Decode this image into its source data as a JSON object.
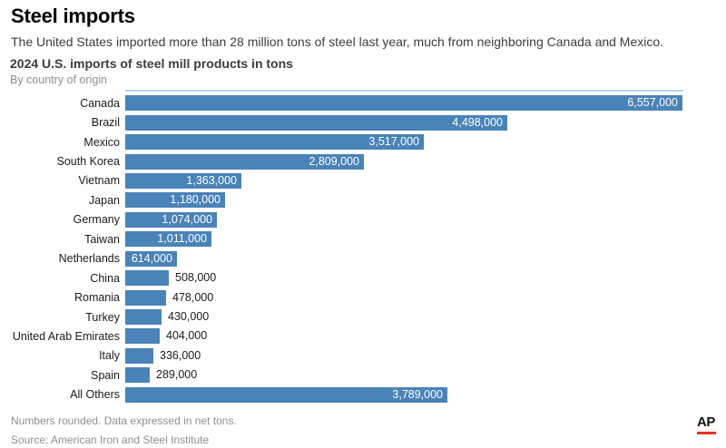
{
  "header": {
    "title": "Steel imports",
    "description": "The United States imported more than 28 million tons of steel last year, much from neighboring Canada and Mexico."
  },
  "chart": {
    "title": "2024 U.S. imports of steel mill products in tons",
    "subtitle": "By country of origin",
    "bar_color": "#4a83b8",
    "top_rule_color": "#b9d5ea",
    "inside_label_color": "#ffffff",
    "outside_label_color": "#1a1a1a"
  },
  "chart_data": {
    "type": "bar",
    "orientation": "horizontal",
    "title": "2024 U.S. imports of steel mill products in tons",
    "subtitle": "By country of origin",
    "xlabel": "",
    "ylabel": "",
    "xlim": [
      0,
      6557000
    ],
    "grid": false,
    "legend": false,
    "categories": [
      "Canada",
      "Brazil",
      "Mexico",
      "South Korea",
      "Vietnam",
      "Japan",
      "Germany",
      "Taiwan",
      "Netherlands",
      "China",
      "Romania",
      "Turkey",
      "United Arab Emirates",
      "Italy",
      "Spain",
      "All Others"
    ],
    "values": [
      6557000,
      4498000,
      3517000,
      2809000,
      1363000,
      1180000,
      1074000,
      1011000,
      614000,
      508000,
      478000,
      430000,
      404000,
      336000,
      289000,
      3789000
    ],
    "value_labels": [
      "6,557,000",
      "4,498,000",
      "3,517,000",
      "2,809,000",
      "1,363,000",
      "1,180,000",
      "1,074,000",
      "1,011,000",
      "614,000",
      "508,000",
      "478,000",
      "430,000",
      "404,000",
      "336,000",
      "289,000",
      "3,789,000"
    ]
  },
  "footer": {
    "note": "Numbers rounded. Data expressed in net tons.",
    "source": "Source: American Iron and Steel Institute",
    "logo_text": "AP",
    "logo_rule_color": "#ee3124"
  }
}
